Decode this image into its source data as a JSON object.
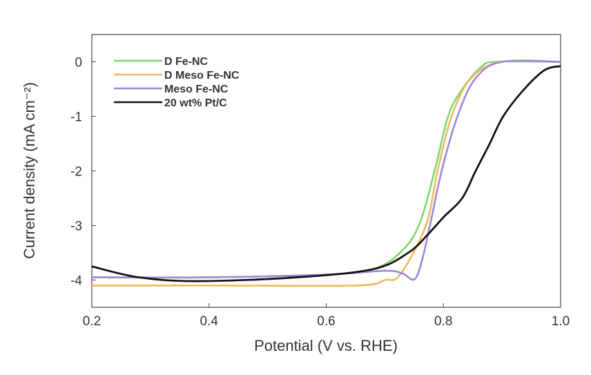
{
  "chart_data": {
    "type": "line",
    "title": "",
    "xlabel": "Potential (V vs. RHE)",
    "ylabel": "Current density (mA cm⁻²)",
    "xlim": [
      0.2,
      1.0
    ],
    "ylim": [
      -4.5,
      0.5
    ],
    "xticks": [
      0.2,
      0.4,
      0.6,
      0.8,
      1.0
    ],
    "xtick_labels": [
      "0.2",
      "0.4",
      "0.6",
      "0.8",
      "1.0"
    ],
    "yticks": [
      0,
      -1,
      -2,
      -3,
      -4
    ],
    "ytick_labels": [
      "0",
      "-1",
      "-2",
      "-3",
      "-4"
    ],
    "grid": false,
    "legend_position": "top-left",
    "series": [
      {
        "name": "D Fe-NC",
        "color": "#7ed86a",
        "x": [
          0.2,
          0.4,
          0.6,
          0.68,
          0.726,
          0.758,
          0.785,
          0.808,
          0.832,
          0.864,
          0.89,
          1.0
        ],
        "y": [
          -3.95,
          -3.95,
          -3.9,
          -3.8,
          -3.5,
          -3.0,
          -2.0,
          -1.0,
          -0.5,
          -0.1,
          0,
          0
        ]
      },
      {
        "name": "D Meso Fe-NC",
        "color": "#f0b860",
        "x": [
          0.2,
          0.4,
          0.65,
          0.7,
          0.726,
          0.77,
          0.79,
          0.814,
          0.847,
          0.9,
          1.0
        ],
        "y": [
          -4.1,
          -4.1,
          -4.1,
          -4.0,
          -3.9,
          -3.0,
          -2.0,
          -1.0,
          -0.3,
          0,
          0
        ]
      },
      {
        "name": "Meso Fe-NC",
        "color": "#9b87d8",
        "x": [
          0.2,
          0.4,
          0.6,
          0.7,
          0.73,
          0.75,
          0.762,
          0.777,
          0.797,
          0.824,
          0.855,
          0.9,
          1.0
        ],
        "y": [
          -3.95,
          -3.95,
          -3.9,
          -3.83,
          -3.88,
          -3.99,
          -3.7,
          -3.0,
          -2.0,
          -1.0,
          -0.3,
          0,
          0
        ]
      },
      {
        "name": "20 wt% Pt/C",
        "color": "#111111",
        "x": [
          0.2,
          0.28,
          0.38,
          0.55,
          0.68,
          0.74,
          0.773,
          0.8,
          0.832,
          0.855,
          0.879,
          0.902,
          0.938,
          0.973,
          1.0
        ],
        "y": [
          -3.75,
          -3.95,
          -4.02,
          -3.95,
          -3.8,
          -3.5,
          -3.17,
          -2.85,
          -2.5,
          -2.0,
          -1.5,
          -1.0,
          -0.5,
          -0.15,
          -0.08
        ]
      }
    ]
  }
}
